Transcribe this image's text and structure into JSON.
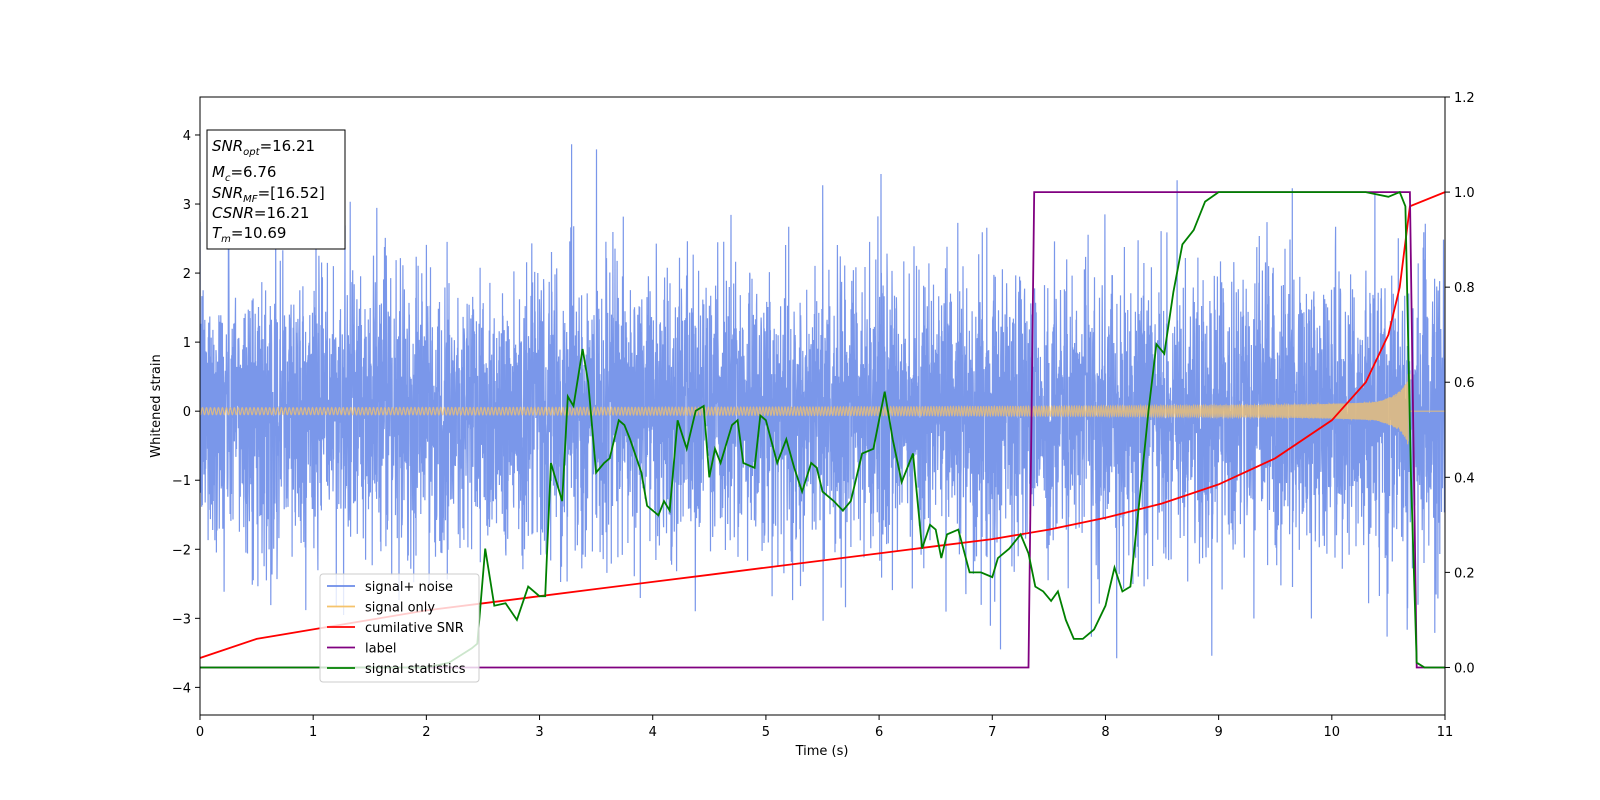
{
  "chart_data": {
    "type": "line",
    "xlabel": "Time (s)",
    "ylabel": "Whitened strain",
    "xlim": [
      0,
      11
    ],
    "ylim": [
      -4.4,
      4.55
    ],
    "y2lim": [
      -0.1,
      1.2
    ],
    "x_ticks": [
      0,
      1,
      2,
      3,
      4,
      5,
      6,
      7,
      8,
      9,
      10,
      11
    ],
    "y_ticks": [
      -4,
      -3,
      -2,
      -1,
      0,
      1,
      2,
      3,
      4
    ],
    "y2_ticks": [
      "0.0",
      "0.2",
      "0.4",
      "0.6",
      "0.8",
      "1.0",
      "1.2"
    ],
    "grid": false,
    "legend_position": "lower-left",
    "info_box": {
      "snr_opt_label": "SNR",
      "snr_opt_sub": "opt",
      "snr_opt_value": "=16.21",
      "mc_label": "M",
      "mc_sub": "c",
      "mc_value": "=6.76",
      "snr_mf_label": "SNR",
      "snr_mf_sub": "MF",
      "snr_mf_value": "=[16.52]",
      "csnr_label": "CSNR",
      "csnr_value": "=16.21",
      "tm_label": "T",
      "tm_sub": "m",
      "tm_value": "=10.69"
    },
    "series": [
      {
        "name": "signal+ noise",
        "color": "#6b8ce8",
        "axis": "left",
        "description_values": "noise std 1.0 plus signal",
        "noise_std": 1.0
      },
      {
        "name": "signal only",
        "color": "#f5c36b",
        "axis": "left",
        "amplitude_start": 0.05,
        "amplitude_peak": 1.05,
        "merger_time": 10.69
      },
      {
        "name": "cumilative SNR",
        "color": "#ff0000",
        "axis": "right",
        "x": [
          0,
          0.5,
          1,
          1.5,
          2,
          2.5,
          3,
          3.5,
          4,
          4.5,
          5,
          5.5,
          6,
          6.5,
          7,
          7.5,
          8,
          8.5,
          9,
          9.5,
          10,
          10.3,
          10.5,
          10.6,
          10.69,
          11
        ],
        "y": [
          0.02,
          0.06,
          0.08,
          0.1,
          0.12,
          0.135,
          0.15,
          0.165,
          0.18,
          0.195,
          0.21,
          0.225,
          0.24,
          0.255,
          0.27,
          0.29,
          0.315,
          0.345,
          0.385,
          0.44,
          0.52,
          0.6,
          0.7,
          0.8,
          0.97,
          1.0
        ]
      },
      {
        "name": "label",
        "color": "#800080",
        "axis": "right",
        "x": [
          0,
          7.32,
          7.37,
          10.69,
          10.75,
          11
        ],
        "y": [
          0,
          0,
          1,
          1,
          0,
          0
        ]
      },
      {
        "name": "signal statistics",
        "color": "#008000",
        "axis": "right",
        "x": [
          0,
          0.5,
          1,
          1.5,
          2,
          2.2,
          2.4,
          2.45,
          2.52,
          2.6,
          2.7,
          2.8,
          2.9,
          3.0,
          3.05,
          3.1,
          3.2,
          3.25,
          3.3,
          3.38,
          3.43,
          3.5,
          3.57,
          3.62,
          3.7,
          3.75,
          3.8,
          3.9,
          3.95,
          4.05,
          4.1,
          4.15,
          4.22,
          4.3,
          4.38,
          4.45,
          4.5,
          4.55,
          4.6,
          4.7,
          4.75,
          4.8,
          4.9,
          4.95,
          5.0,
          5.1,
          5.18,
          5.25,
          5.32,
          5.4,
          5.45,
          5.5,
          5.6,
          5.68,
          5.75,
          5.85,
          5.95,
          6.05,
          6.12,
          6.2,
          6.3,
          6.38,
          6.45,
          6.5,
          6.55,
          6.6,
          6.7,
          6.8,
          6.9,
          7.0,
          7.05,
          7.15,
          7.25,
          7.32,
          7.38,
          7.45,
          7.52,
          7.58,
          7.65,
          7.72,
          7.8,
          7.9,
          8.0,
          8.08,
          8.15,
          8.22,
          8.3,
          8.38,
          8.45,
          8.52,
          8.6,
          8.68,
          8.78,
          8.88,
          9.0,
          9.2,
          9.5,
          10.0,
          10.3,
          10.5,
          10.6,
          10.65,
          10.7,
          10.75,
          10.82,
          10.9,
          11.0
        ],
        "y": [
          0,
          0.0,
          0.0,
          0.0,
          0.0,
          0.01,
          0.04,
          0.05,
          0.25,
          0.13,
          0.135,
          0.1,
          0.17,
          0.15,
          0.15,
          0.43,
          0.35,
          0.57,
          0.55,
          0.67,
          0.6,
          0.41,
          0.43,
          0.44,
          0.52,
          0.51,
          0.48,
          0.41,
          0.34,
          0.32,
          0.35,
          0.33,
          0.52,
          0.46,
          0.54,
          0.55,
          0.4,
          0.46,
          0.43,
          0.51,
          0.52,
          0.43,
          0.42,
          0.53,
          0.52,
          0.43,
          0.48,
          0.42,
          0.37,
          0.43,
          0.42,
          0.37,
          0.35,
          0.33,
          0.35,
          0.45,
          0.46,
          0.58,
          0.48,
          0.39,
          0.45,
          0.25,
          0.3,
          0.29,
          0.23,
          0.28,
          0.29,
          0.2,
          0.2,
          0.19,
          0.23,
          0.25,
          0.28,
          0.24,
          0.17,
          0.16,
          0.14,
          0.16,
          0.1,
          0.06,
          0.06,
          0.08,
          0.13,
          0.21,
          0.16,
          0.17,
          0.35,
          0.54,
          0.68,
          0.66,
          0.79,
          0.89,
          0.92,
          0.98,
          1.0,
          1.0,
          1.0,
          1.0,
          1.0,
          0.99,
          1.0,
          0.97,
          0.4,
          0.01,
          0.0,
          0.0,
          0.0
        ]
      }
    ]
  }
}
